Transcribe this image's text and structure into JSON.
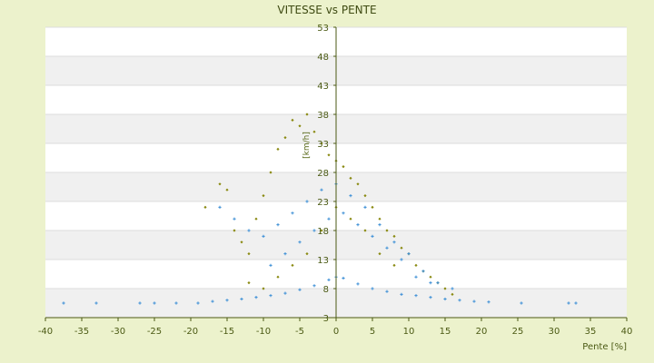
{
  "chart_data": {
    "type": "scatter",
    "title": "VITESSE vs PENTE",
    "xlabel": "Pente [%]",
    "ylabel": "[km/h]",
    "xlim": [
      -40,
      40
    ],
    "ylim": [
      3,
      53
    ],
    "x_ticks": [
      "-40",
      "-35",
      "-30",
      "-25",
      "-20",
      "-15",
      "-10",
      "-5",
      "0",
      "5",
      "10",
      "15",
      "20",
      "25",
      "30",
      "35",
      "40"
    ],
    "y_ticks": [
      "3",
      "8",
      "13",
      "18",
      "23",
      "28",
      "33",
      "38",
      "43",
      "48",
      "53"
    ],
    "grid": "horizontal-bands",
    "colors": {
      "background": "#ecf2cc",
      "plot_band_light": "#ffffff",
      "plot_band_dark": "#f0f0f0",
      "axis": "#4b5a14",
      "series_blue": "#3d8fd6",
      "series_olive": "#8a8a12"
    },
    "series": [
      {
        "color": "#8a8a12",
        "marker": "diamond",
        "points": [
          [
            -18,
            22
          ],
          [
            -16,
            26
          ],
          [
            -15,
            25
          ],
          [
            -14,
            18
          ],
          [
            -13,
            16
          ],
          [
            -12,
            14
          ],
          [
            -11,
            20
          ],
          [
            -10,
            24
          ],
          [
            -9,
            28
          ],
          [
            -8,
            32
          ],
          [
            -7,
            34
          ],
          [
            -6,
            37
          ],
          [
            -5,
            36
          ],
          [
            -4,
            38
          ],
          [
            -3,
            35
          ],
          [
            -2,
            33
          ],
          [
            -1,
            31
          ],
          [
            0,
            30
          ],
          [
            1,
            29
          ],
          [
            2,
            27
          ],
          [
            3,
            26
          ],
          [
            4,
            24
          ],
          [
            5,
            22
          ],
          [
            6,
            20
          ],
          [
            7,
            18
          ],
          [
            8,
            17
          ],
          [
            9,
            15
          ],
          [
            10,
            14
          ],
          [
            11,
            12
          ],
          [
            12,
            11
          ],
          [
            13,
            10
          ],
          [
            14,
            9
          ],
          [
            15,
            8
          ],
          [
            16,
            7
          ],
          [
            -12,
            9
          ],
          [
            -10,
            8
          ],
          [
            -8,
            10
          ],
          [
            -6,
            12
          ],
          [
            -4,
            14
          ],
          [
            -2,
            18
          ],
          [
            0,
            22
          ],
          [
            2,
            20
          ],
          [
            4,
            18
          ],
          [
            6,
            14
          ],
          [
            8,
            12
          ]
        ]
      },
      {
        "color": "#3d8fd6",
        "marker": "plus",
        "points": [
          [
            -37.5,
            5.5
          ],
          [
            -33,
            5.5
          ],
          [
            -27,
            5.5
          ],
          [
            -25,
            5.5
          ],
          [
            -22,
            5.5
          ],
          [
            -19,
            5.5
          ],
          [
            -17,
            5.8
          ],
          [
            -15,
            6
          ],
          [
            -13,
            6.2
          ],
          [
            -11,
            6.5
          ],
          [
            -9,
            6.8
          ],
          [
            -7,
            7.2
          ],
          [
            -5,
            7.8
          ],
          [
            -3,
            8.5
          ],
          [
            -1,
            9.5
          ],
          [
            0,
            10
          ],
          [
            1,
            9.8
          ],
          [
            3,
            8.8
          ],
          [
            5,
            8
          ],
          [
            7,
            7.5
          ],
          [
            9,
            7
          ],
          [
            11,
            6.8
          ],
          [
            13,
            6.5
          ],
          [
            15,
            6.2
          ],
          [
            17,
            6
          ],
          [
            19,
            5.8
          ],
          [
            21,
            5.7
          ],
          [
            25.5,
            5.5
          ],
          [
            32,
            5.5
          ],
          [
            33,
            5.5
          ],
          [
            -16,
            22
          ],
          [
            -14,
            20
          ],
          [
            -12,
            18
          ],
          [
            -10,
            17
          ],
          [
            -8,
            19
          ],
          [
            -6,
            21
          ],
          [
            -4,
            23
          ],
          [
            -2,
            25
          ],
          [
            0,
            26
          ],
          [
            2,
            24
          ],
          [
            4,
            22
          ],
          [
            6,
            19
          ],
          [
            8,
            16
          ],
          [
            10,
            14
          ],
          [
            12,
            11
          ],
          [
            14,
            9
          ],
          [
            16,
            8
          ],
          [
            -9,
            12
          ],
          [
            -7,
            14
          ],
          [
            -5,
            16
          ],
          [
            -3,
            18
          ],
          [
            -1,
            20
          ],
          [
            1,
            21
          ],
          [
            3,
            19
          ],
          [
            5,
            17
          ],
          [
            7,
            15
          ],
          [
            9,
            13
          ],
          [
            11,
            10
          ],
          [
            13,
            9
          ]
        ]
      }
    ]
  }
}
